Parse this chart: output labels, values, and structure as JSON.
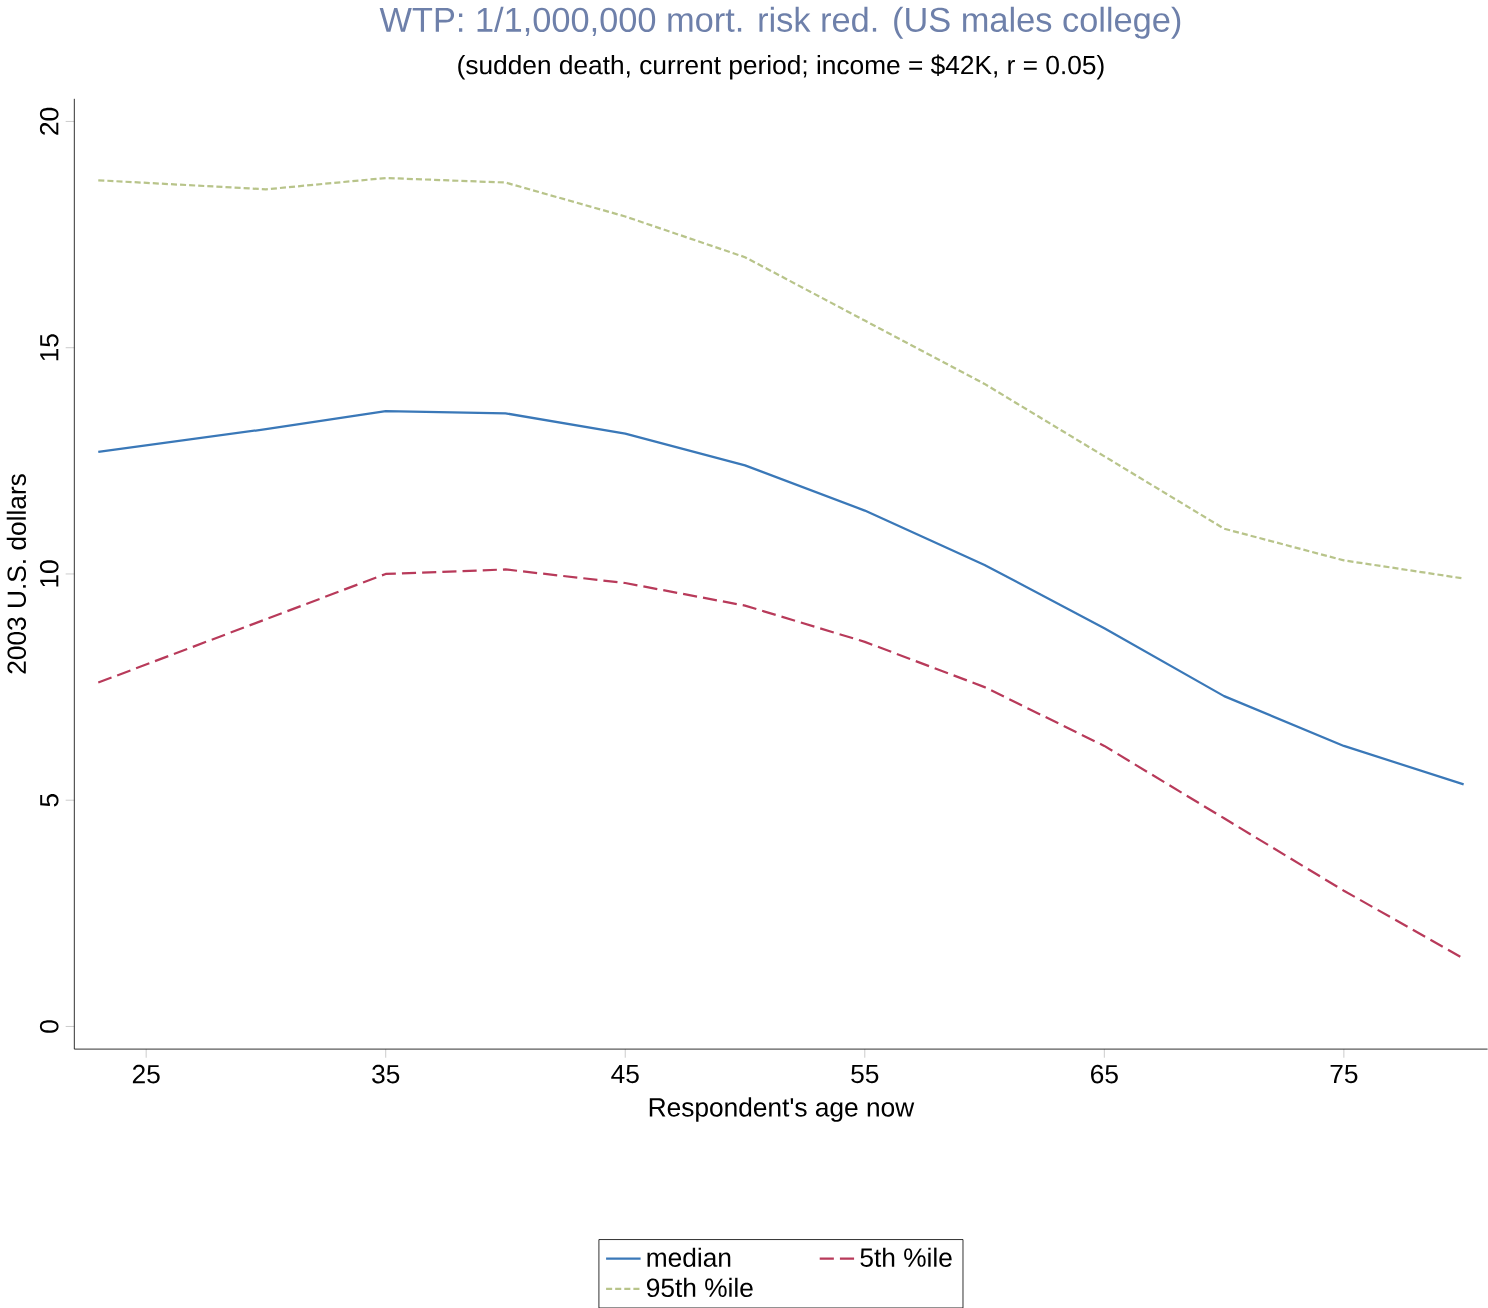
{
  "chart_data": {
    "type": "line",
    "title": "WTP: 1/1,000,000 mort. risk red. (US males college)",
    "subtitle": "(sudden death, current period; income = $42K, r = 0.05)",
    "xlabel": "Respondent's age now",
    "ylabel": "2003 U.S. dollars",
    "x": [
      23,
      30,
      35,
      40,
      45,
      50,
      55,
      60,
      65,
      70,
      75,
      80
    ],
    "series": [
      {
        "name": "median",
        "color": "#3a78b8",
        "line_style": "solid",
        "values": [
          12.7,
          13.2,
          13.6,
          13.55,
          13.1,
          12.4,
          11.4,
          10.2,
          8.8,
          7.3,
          6.2,
          5.35
        ]
      },
      {
        "name": "5th %ile",
        "color": "#b83a5a",
        "line_style": "dashed",
        "values": [
          7.6,
          9.0,
          10.0,
          10.1,
          9.8,
          9.3,
          8.5,
          7.5,
          6.2,
          4.6,
          3.0,
          1.5
        ]
      },
      {
        "name": "95th %ile",
        "color": "#b8c48a",
        "line_style": "dotted",
        "values": [
          18.7,
          18.5,
          18.75,
          18.65,
          17.9,
          17.0,
          15.6,
          14.2,
          12.6,
          11.0,
          10.3,
          9.9
        ]
      }
    ],
    "xlim": [
      22,
      81
    ],
    "xticks": [
      25,
      35,
      45,
      55,
      65,
      75
    ],
    "ylim": [
      -0.5,
      20.5
    ],
    "yticks": [
      0,
      5,
      10,
      15,
      20
    ],
    "grid": false,
    "legend": "bottom",
    "marker": "none"
  }
}
